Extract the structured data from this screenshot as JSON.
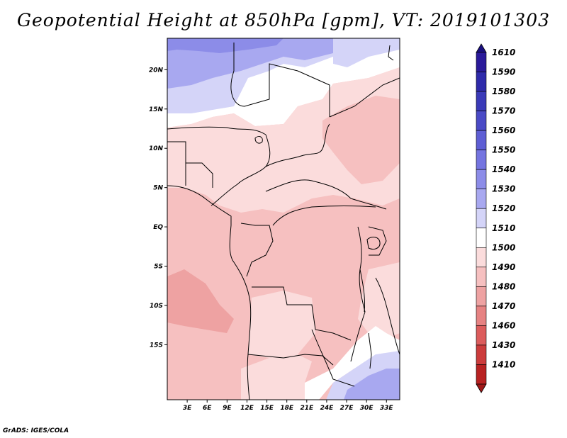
{
  "title": "Geopotential Height at 850hPa [gpm], VT: 2019101303",
  "credit": "GrADS: IGES/COLA",
  "map": {
    "lon_range": [
      0,
      35
    ],
    "lat_range": [
      -22,
      24
    ],
    "lat_ticks": [
      {
        "value": 20,
        "label": "20N"
      },
      {
        "value": 15,
        "label": "15N"
      },
      {
        "value": 10,
        "label": "10N"
      },
      {
        "value": 5,
        "label": "5N"
      },
      {
        "value": 0,
        "label": "EQ"
      },
      {
        "value": -5,
        "label": "5S"
      },
      {
        "value": -10,
        "label": "10S"
      },
      {
        "value": -15,
        "label": "15S"
      }
    ],
    "lon_ticks": [
      {
        "value": 3,
        "label": "3E"
      },
      {
        "value": 6,
        "label": "6E"
      },
      {
        "value": 9,
        "label": "9E"
      },
      {
        "value": 12,
        "label": "12E"
      },
      {
        "value": 15,
        "label": "15E"
      },
      {
        "value": 18,
        "label": "18E"
      },
      {
        "value": 21,
        "label": "21E"
      },
      {
        "value": 24,
        "label": "24E"
      },
      {
        "value": 27,
        "label": "27E"
      },
      {
        "value": 30,
        "label": "30E"
      },
      {
        "value": 33,
        "label": "33E"
      }
    ]
  },
  "colorbar": {
    "levels": [
      {
        "label": "1610",
        "color": "#2a1a9a"
      },
      {
        "label": "1590",
        "color": "#2e2aaa"
      },
      {
        "label": "1580",
        "color": "#3a3ab8"
      },
      {
        "label": "1570",
        "color": "#4a4ac6"
      },
      {
        "label": "1560",
        "color": "#5e5ed4"
      },
      {
        "label": "1550",
        "color": "#7474e0"
      },
      {
        "label": "1540",
        "color": "#8c8ce8"
      },
      {
        "label": "1530",
        "color": "#a8a8f0"
      },
      {
        "label": "1520",
        "color": "#d4d4f8"
      },
      {
        "label": "1510",
        "color": "#ffffff"
      },
      {
        "label": "1500",
        "color": "#fbdcdc"
      },
      {
        "label": "1490",
        "color": "#f6c0c0"
      },
      {
        "label": "1480",
        "color": "#eea2a2"
      },
      {
        "label": "1470",
        "color": "#e68282"
      },
      {
        "label": "1460",
        "color": "#dc5c5c"
      },
      {
        "label": "1430",
        "color": "#cc3c3c"
      },
      {
        "label": "1410",
        "color": "#b82222"
      }
    ],
    "top_cap_color": "#1a0f80",
    "bottom_cap_color": "#a01818"
  },
  "fields": {
    "bg": "#f6c0c0",
    "white": "#ffffff",
    "light_pink": "#fbdcdc",
    "mid_pink": "#eea2a2",
    "light_blue": "#d4d4f8",
    "blue": "#a8a8f0",
    "deep_blue": "#8c8ce8"
  }
}
